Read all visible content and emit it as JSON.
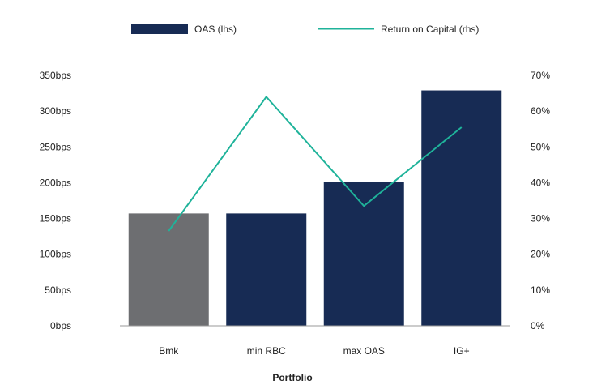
{
  "chart_data": {
    "type": "bar",
    "xlabel": "Portfolio",
    "categories": [
      "Bmk",
      "min RBC",
      "max OAS",
      "IG+"
    ],
    "series": [
      {
        "name": "OAS (lhs)",
        "type": "bar",
        "axis": "left",
        "values": [
          157,
          157,
          201,
          329
        ],
        "colors": [
          "#6d6e71",
          "#172b54",
          "#172b54",
          "#172b54"
        ]
      },
      {
        "name": "Return on Capital (rhs)",
        "type": "line",
        "axis": "right",
        "values": [
          26.5,
          64,
          33.5,
          55.5
        ],
        "color": "#1fb39a"
      }
    ],
    "y_left": {
      "min": 0,
      "max": 350,
      "step": 50,
      "tick_labels": [
        "0bps",
        "50bps",
        "100bps",
        "150bps",
        "200bps",
        "250bps",
        "300bps",
        "350bps"
      ]
    },
    "y_right": {
      "min": 0,
      "max": 70,
      "step": 10,
      "tick_labels": [
        "0%",
        "10%",
        "20%",
        "30%",
        "40%",
        "50%",
        "60%",
        "70%"
      ]
    },
    "legend": {
      "position": "top",
      "entries": [
        "OAS (lhs)",
        "Return on Capital (rhs)"
      ]
    },
    "grid": false
  }
}
